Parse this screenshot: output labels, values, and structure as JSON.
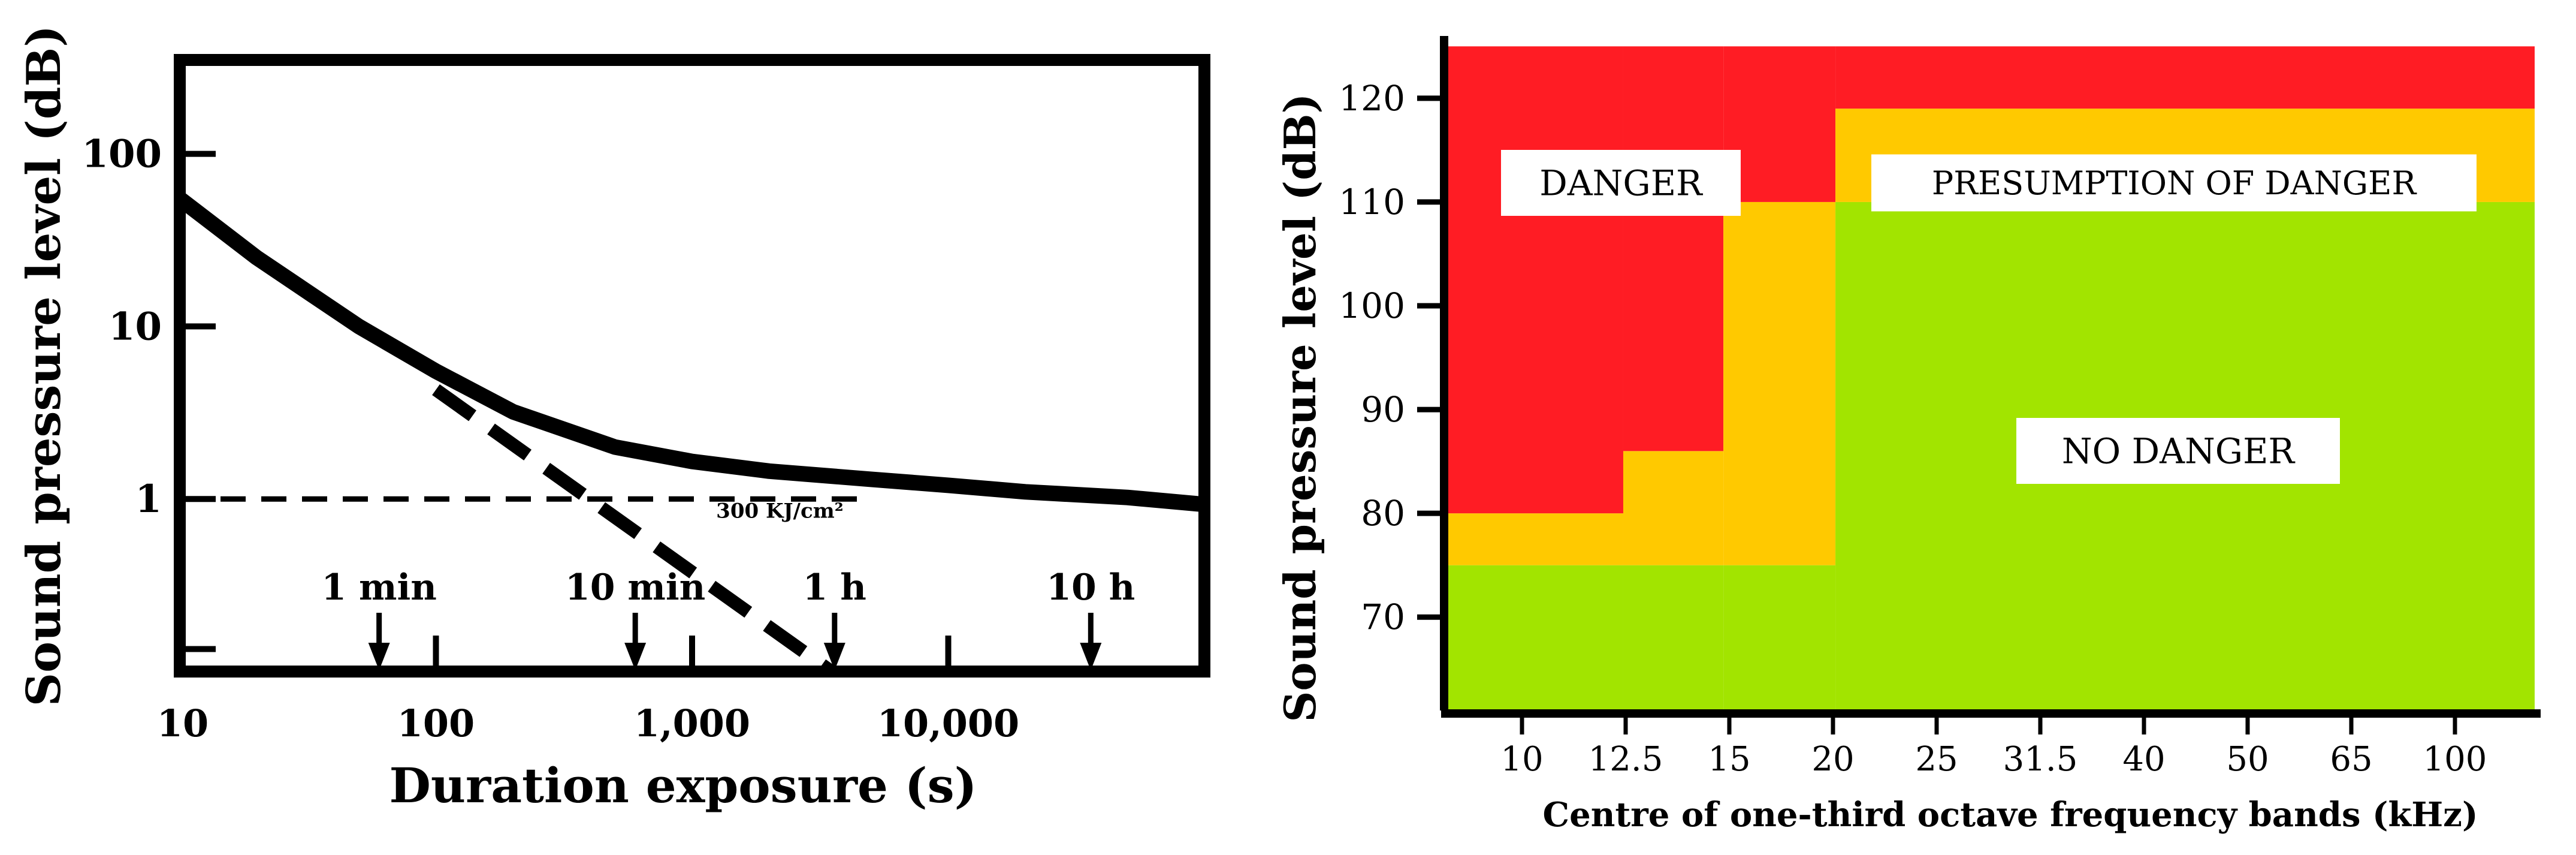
{
  "chart_data": [
    {
      "type": "line",
      "title": "",
      "xlabel": "Duration exposure (s)",
      "ylabel": "Sound pressure level (dB)",
      "x_scale": "log",
      "y_scale": "log",
      "xlim": [
        10,
        100000
      ],
      "ylim": [
        0.1,
        350
      ],
      "x_ticks": [
        10,
        100,
        1000,
        10000
      ],
      "x_tick_labels": [
        "10",
        "100",
        "1,000",
        "10,000"
      ],
      "y_ticks": [
        1,
        10,
        100
      ],
      "y_tick_labels": [
        "1",
        "10",
        "100"
      ],
      "grid": false,
      "series": [
        {
          "style": "solid",
          "x": [
            10,
            20,
            50,
            100,
            200,
            500,
            1000,
            2000,
            5000,
            10000,
            20000,
            50000,
            100000
          ],
          "y": [
            55,
            25,
            10,
            5.5,
            3.2,
            2.0,
            1.65,
            1.45,
            1.3,
            1.2,
            1.1,
            1.02,
            0.93
          ]
        },
        {
          "style": "dashed",
          "x": [
            100,
            3500
          ],
          "y": [
            4.3,
            0.1
          ]
        },
        {
          "style": "dashed",
          "x": [
            10,
            5000
          ],
          "y": [
            1,
            1
          ]
        }
      ],
      "annotations": [
        {
          "text": "300 KJ/cm²",
          "x": 2200,
          "y": 0.78
        },
        {
          "text": "1 min",
          "x": 60,
          "y": 0.1
        },
        {
          "text": "10 min",
          "x": 600,
          "y": 0.1
        },
        {
          "text": "1 h",
          "x": 3600,
          "y": 0.1
        },
        {
          "text": "10 h",
          "x": 36000,
          "y": 0.1
        }
      ],
      "minor_ticks": [
        1000,
        10000
      ]
    },
    {
      "type": "heatmap",
      "title": "",
      "xlabel": "Centre of one-third octave frequency bands (kHz)",
      "ylabel": "Sound pressure level (dB)",
      "categories": [
        "10",
        "12.5",
        "15",
        "20",
        "25",
        "31.5",
        "40",
        "50",
        "65",
        "100"
      ],
      "y_ticks": [
        70,
        80,
        90,
        100,
        110,
        120
      ],
      "ylim": [
        61,
        126
      ],
      "zones": {
        "danger": {
          "label": "DANGER",
          "color": "#ff1c24"
        },
        "presumption": {
          "label": "PRESUMPTION OF DANGER",
          "color": "#ffc900"
        },
        "no_danger": {
          "label": "NO DANGER",
          "color": "#a2e400"
        }
      },
      "bands": [
        {
          "x_from": 9,
          "x_to": 13.5,
          "no_danger_max": 75,
          "presumption_max": 80,
          "danger_max": 125
        },
        {
          "x_from": 13.5,
          "x_to": 17,
          "no_danger_max": 75,
          "presumption_max": 86,
          "danger_max": 125
        },
        {
          "x_from": 17,
          "x_to": 22,
          "no_danger_max": 75,
          "presumption_max": 110,
          "danger_max": 125
        },
        {
          "x_from": 22,
          "x_to": 110,
          "no_danger_max": 110,
          "presumption_max": 119,
          "danger_max": 125
        }
      ]
    }
  ]
}
